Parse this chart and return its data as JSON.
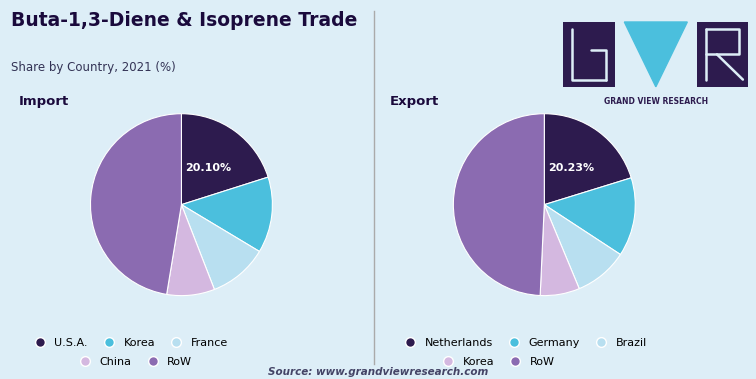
{
  "title": "Buta-1,3-Diene & Isoprene Trade",
  "subtitle": "Share by Country, 2021 (%)",
  "source": "Source: www.grandviewresearch.com",
  "background_color": "#ddeef7",
  "import_label": "Import",
  "export_label": "Export",
  "import_labels": [
    "U.S.A.",
    "Korea",
    "France",
    "China",
    "RoW"
  ],
  "import_values": [
    20.1,
    13.5,
    10.5,
    8.5,
    47.4
  ],
  "import_colors": [
    "#2d1b4e",
    "#4bbfdd",
    "#b8dff0",
    "#d4b8e0",
    "#8b6bb1"
  ],
  "import_label_value": "20.10%",
  "export_labels": [
    "Netherlands",
    "Germany",
    "Brazil",
    "Korea",
    "RoW"
  ],
  "export_values": [
    20.23,
    14.0,
    9.5,
    7.0,
    49.27
  ],
  "export_colors": [
    "#2d1b4e",
    "#4bbfdd",
    "#b8dff0",
    "#d4b8e0",
    "#8b6bb1"
  ],
  "export_label_value": "20.23%",
  "legend_import": [
    {
      "label": "U.S.A.",
      "color": "#2d1b4e"
    },
    {
      "label": "Korea",
      "color": "#4bbfdd"
    },
    {
      "label": "France",
      "color": "#b8dff0"
    },
    {
      "label": "China",
      "color": "#d4b8e0"
    },
    {
      "label": "RoW",
      "color": "#8b6bb1"
    }
  ],
  "legend_export": [
    {
      "label": "Netherlands",
      "color": "#2d1b4e"
    },
    {
      "label": "Germany",
      "color": "#4bbfdd"
    },
    {
      "label": "Brazil",
      "color": "#b8dff0"
    },
    {
      "label": "Korea",
      "color": "#d4b8e0"
    },
    {
      "label": "RoW",
      "color": "#8b6bb1"
    }
  ],
  "logo_bg": "#2d1b4e",
  "logo_accent": "#4bbfdd",
  "logo_text": "GRAND VIEW RESEARCH",
  "title_color": "#1a0a3c",
  "subtitle_color": "#333355",
  "label_color": "#1a0a3c",
  "divider_color": "#aaaaaa",
  "source_color": "#444466"
}
